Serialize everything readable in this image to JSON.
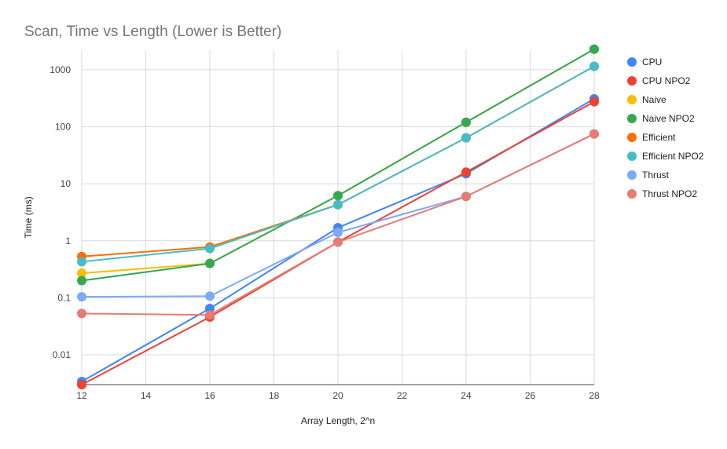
{
  "chart_data": {
    "type": "line",
    "title": "Scan, Time vs Length (Lower is Better)",
    "xlabel": "Array Length, 2^n",
    "ylabel": "Time (ms)",
    "x_scale": "linear",
    "y_scale": "log",
    "xlim": [
      12,
      28
    ],
    "ylim": [
      0.003,
      2200
    ],
    "x_ticks": [
      12,
      14,
      16,
      18,
      20,
      22,
      24,
      26,
      28
    ],
    "y_ticks": [
      0.01,
      0.1,
      1,
      10,
      100,
      1000
    ],
    "y_tick_labels": [
      "0.01",
      "0.1",
      "1",
      "10",
      "100",
      "1000"
    ],
    "grid": true,
    "legend_position": "right",
    "x": [
      12,
      16,
      20,
      24,
      28
    ],
    "series": [
      {
        "name": "CPU",
        "color": "#4285F4",
        "values": [
          0.0034,
          0.065,
          1.7,
          15,
          310
        ]
      },
      {
        "name": "CPU NPO2",
        "color": "#EA4335",
        "values": [
          0.003,
          0.046,
          0.95,
          16,
          275
        ]
      },
      {
        "name": "Naive",
        "color": "#FBBC04",
        "values": [
          0.27,
          0.4,
          6.2,
          120,
          2300
        ]
      },
      {
        "name": "Naive NPO2",
        "color": "#34A853",
        "values": [
          0.2,
          0.4,
          6.2,
          120,
          2300
        ]
      },
      {
        "name": "Efficient",
        "color": "#FF6D01",
        "values": [
          0.53,
          0.78,
          4.3,
          64,
          1150
        ]
      },
      {
        "name": "Efficient NPO2",
        "color": "#46BDC6",
        "values": [
          0.43,
          0.73,
          4.3,
          64,
          1150
        ]
      },
      {
        "name": "Thrust",
        "color": "#7BAAF7",
        "values": [
          0.104,
          0.107,
          1.4,
          6,
          75
        ]
      },
      {
        "name": "Thrust NPO2",
        "color": "#E67C73",
        "values": [
          0.053,
          0.05,
          0.95,
          6,
          75
        ]
      }
    ]
  }
}
